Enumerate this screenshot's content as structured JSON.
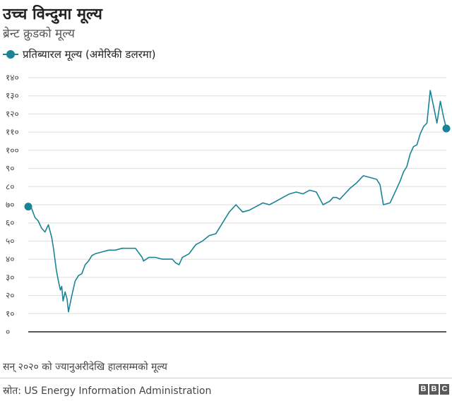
{
  "header": {
    "title": "उच्च विन्दुमा मूल्य",
    "subtitle": "ब्रेन्ट क्रुडको मूल्य"
  },
  "footer": {
    "note": "सन् २०२० को ज्यानुअरीदेखि हालसम्मको मूल्य",
    "source": "स्रोत: US Energy Information Administration",
    "logo_letters": [
      "B",
      "B",
      "C"
    ]
  },
  "colors": {
    "line": "#1a8396",
    "grid": "#dddddd",
    "axis": "#222222"
  },
  "chart_data": {
    "type": "line",
    "series": [
      {
        "name": "प्रतिब्यारल मूल्य (अमेरिकी डलरमा)",
        "x": [
          0,
          5,
          10,
          15,
          20,
          25,
          30,
          35,
          38,
          42,
          45,
          48,
          50,
          52,
          55,
          58,
          60,
          65,
          70,
          75,
          80,
          85,
          90,
          95,
          100,
          110,
          120,
          130,
          140,
          150,
          160,
          170,
          172,
          180,
          190,
          200,
          210,
          215,
          220,
          225,
          230,
          240,
          250,
          260,
          270,
          280,
          290,
          300,
          310,
          320,
          330,
          340,
          350,
          360,
          370,
          380,
          390,
          400,
          410,
          420,
          430,
          440,
          450,
          455,
          460,
          465,
          470,
          480,
          490,
          500,
          510,
          520,
          525,
          530,
          540,
          550,
          555,
          560,
          565,
          570,
          575,
          580,
          585,
          590,
          595,
          600,
          605,
          610,
          615,
          620,
          624
        ],
        "values": [
          69,
          68,
          63,
          61,
          57,
          55,
          59,
          52,
          45,
          34,
          28,
          23,
          25,
          17,
          22,
          18,
          11,
          20,
          28,
          31,
          32,
          37,
          39,
          42,
          43,
          44,
          45,
          45,
          46,
          46,
          46,
          41,
          39,
          41,
          41,
          40,
          40,
          40,
          38,
          37,
          41,
          43,
          48,
          50,
          53,
          54,
          60,
          66,
          70,
          66,
          67,
          69,
          71,
          70,
          72,
          74,
          76,
          77,
          76,
          78,
          77,
          70,
          72,
          74,
          74,
          73,
          75,
          79,
          82,
          86,
          85,
          84,
          81,
          70,
          71,
          79,
          83,
          88,
          91,
          98,
          102,
          103,
          109,
          113,
          115,
          133,
          124,
          115,
          127,
          118,
          112
        ]
      }
    ],
    "y_ticks": [
      "०",
      "१०",
      "२०",
      "३०",
      "४०",
      "५०",
      "६०",
      "७०",
      "८०",
      "९०",
      "१००",
      "११०",
      "१२०",
      "१३०",
      "१४०"
    ],
    "ylim": [
      0,
      140
    ],
    "xlim": [
      0,
      624
    ],
    "grid": true,
    "legend_position": "top-left"
  }
}
